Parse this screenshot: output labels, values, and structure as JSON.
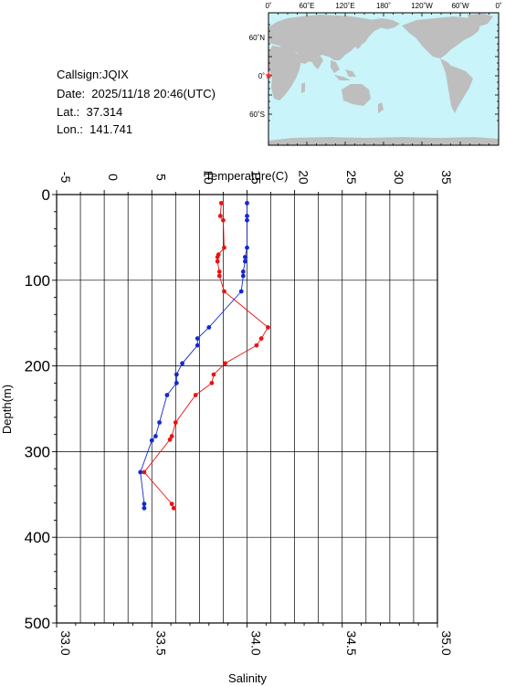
{
  "info": {
    "callsign": "Callsign:JQIX",
    "date": "Date:  2025/11/18 20:46(UTC)",
    "lat": "Lat.:  37.314",
    "lon": "Lon.:  141.741"
  },
  "map": {
    "top_ticks": [
      "0˚",
      "60˚E",
      "120˚E",
      "180˚",
      "120˚W",
      "60˚W",
      "0˚"
    ],
    "lat_ticks": [
      "60˚N",
      "0˚",
      "60˚S"
    ],
    "ocean_color": "#c8f4fa",
    "land_color": "#bebebe",
    "station_color": "#ff2a2a",
    "station_marker": "star-icon"
  },
  "chart_data": {
    "type": "line",
    "title": "",
    "top_axis": {
      "label": "Temperature(C)",
      "range": [
        -5,
        35
      ],
      "ticks": [
        "-5",
        "0",
        "5",
        "10",
        "15",
        "20",
        "25",
        "30",
        "35"
      ]
    },
    "bottom_axis": {
      "label": "Salinity",
      "range": [
        33.0,
        35.0
      ],
      "ticks": [
        "33.0",
        "33.5",
        "34.0",
        "34.5",
        "35.0"
      ]
    },
    "y_axis": {
      "label": "Depth(m)",
      "range": [
        0,
        500
      ],
      "inverted": true,
      "ticks": [
        "0",
        "100",
        "200",
        "300",
        "400",
        "500"
      ]
    },
    "grid": true,
    "series": [
      {
        "axis": "temperature",
        "color": "#e81414",
        "points": [
          {
            "x": 12.3,
            "y": 10
          },
          {
            "x": 12.2,
            "y": 25
          },
          {
            "x": 12.5,
            "y": 30
          },
          {
            "x": 12.6,
            "y": 62
          },
          {
            "x": 12.0,
            "y": 70
          },
          {
            "x": 11.9,
            "y": 73
          },
          {
            "x": 11.9,
            "y": 78
          },
          {
            "x": 12.1,
            "y": 90
          },
          {
            "x": 12.1,
            "y": 95
          },
          {
            "x": 12.6,
            "y": 113
          },
          {
            "x": 17.2,
            "y": 155
          },
          {
            "x": 16.5,
            "y": 168
          },
          {
            "x": 16.0,
            "y": 176
          },
          {
            "x": 12.7,
            "y": 197
          },
          {
            "x": 11.5,
            "y": 210
          },
          {
            "x": 11.3,
            "y": 220
          },
          {
            "x": 9.6,
            "y": 234
          },
          {
            "x": 7.5,
            "y": 266
          },
          {
            "x": 7.1,
            "y": 282
          },
          {
            "x": 6.9,
            "y": 286
          },
          {
            "x": 4.2,
            "y": 324
          },
          {
            "x": 7.1,
            "y": 361
          },
          {
            "x": 7.3,
            "y": 366
          }
        ]
      },
      {
        "axis": "salinity",
        "color": "#1428d2",
        "points": [
          {
            "x": 34.0,
            "y": 10
          },
          {
            "x": 34.0,
            "y": 25
          },
          {
            "x": 34.0,
            "y": 30
          },
          {
            "x": 34.0,
            "y": 62
          },
          {
            "x": 33.99,
            "y": 73
          },
          {
            "x": 33.99,
            "y": 78
          },
          {
            "x": 33.98,
            "y": 90
          },
          {
            "x": 33.98,
            "y": 95
          },
          {
            "x": 33.97,
            "y": 113
          },
          {
            "x": 33.8,
            "y": 155
          },
          {
            "x": 33.74,
            "y": 168
          },
          {
            "x": 33.74,
            "y": 176
          },
          {
            "x": 33.66,
            "y": 197
          },
          {
            "x": 33.63,
            "y": 210
          },
          {
            "x": 33.63,
            "y": 220
          },
          {
            "x": 33.58,
            "y": 234
          },
          {
            "x": 33.54,
            "y": 266
          },
          {
            "x": 33.52,
            "y": 282
          },
          {
            "x": 33.5,
            "y": 287
          },
          {
            "x": 33.44,
            "y": 324
          },
          {
            "x": 33.46,
            "y": 361
          },
          {
            "x": 33.46,
            "y": 366
          }
        ]
      }
    ]
  }
}
